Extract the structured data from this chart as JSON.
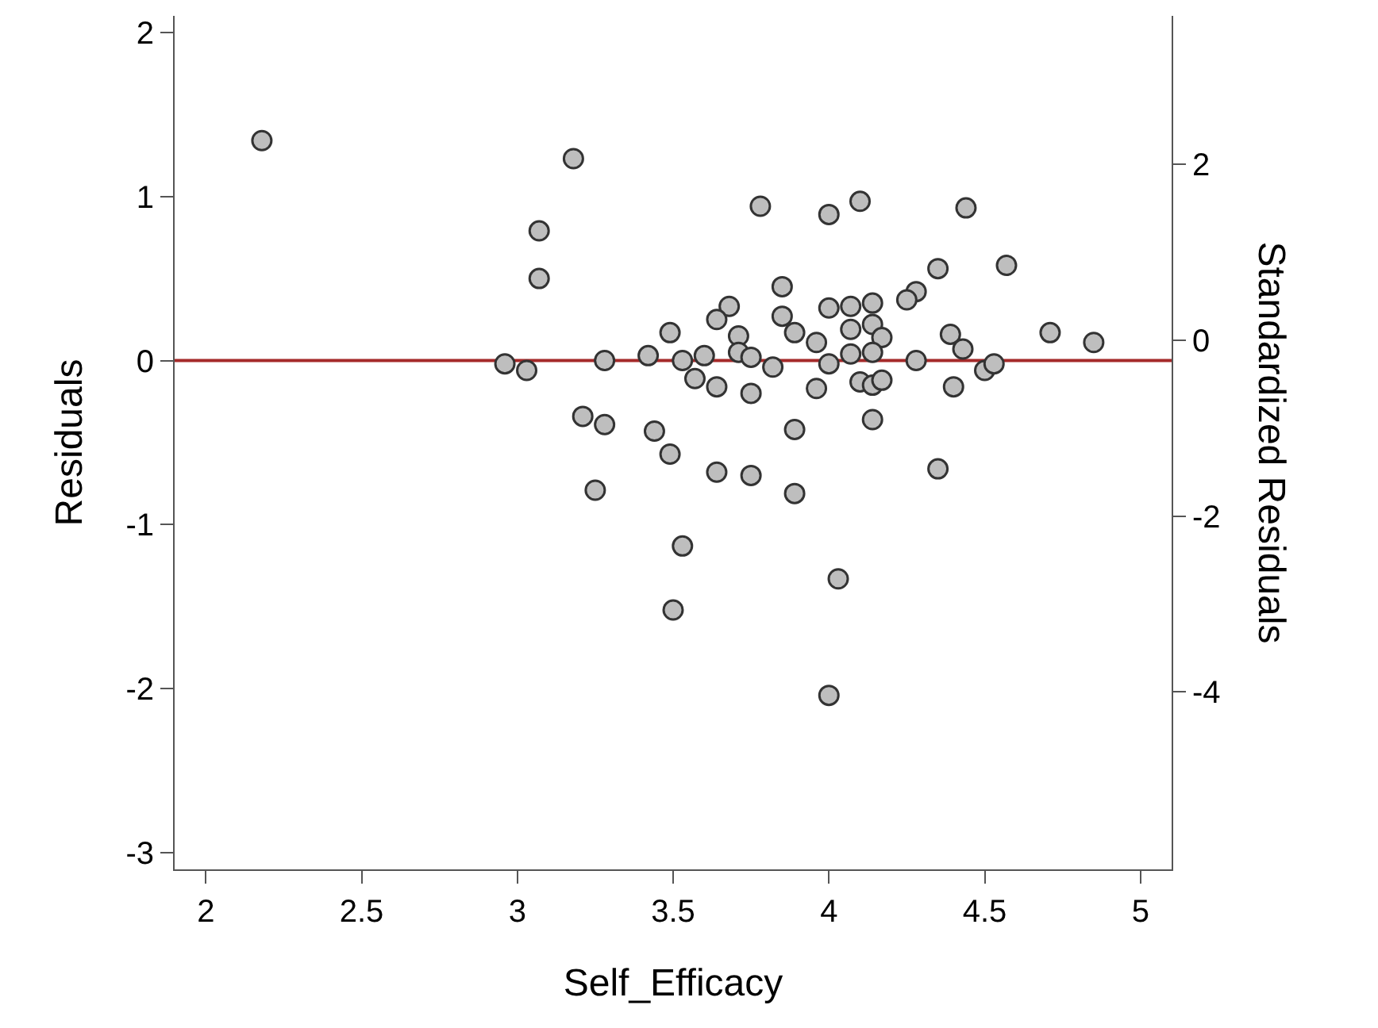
{
  "chart_data": {
    "type": "scatter",
    "xlabel": "Self_Efficacy",
    "ylabel": "Residuals",
    "y2label": "Standardized Residuals",
    "x": [
      2.18,
      3.18,
      3.07,
      3.07,
      2.96,
      3.03,
      3.28,
      3.42,
      3.21,
      3.28,
      3.44,
      3.25,
      3.49,
      3.49,
      3.78,
      4.0,
      4.1,
      4.44,
      4.35,
      4.57,
      3.85,
      3.68,
      3.64,
      4.0,
      4.07,
      4.14,
      4.28,
      4.25,
      3.85,
      3.89,
      4.07,
      4.14,
      4.17,
      3.96,
      3.71,
      4.39,
      4.43,
      4.71,
      4.85,
      3.53,
      3.6,
      3.71,
      3.75,
      3.82,
      4.0,
      4.07,
      4.14,
      4.28,
      4.5,
      4.53,
      3.57,
      3.64,
      3.75,
      3.96,
      4.1,
      4.14,
      4.17,
      4.4,
      4.14,
      3.89,
      4.35,
      3.64,
      3.75,
      3.89,
      3.53,
      4.03,
      3.5,
      4.0
    ],
    "series": [
      {
        "color": "#bebebe",
        "values": [
          1.34,
          1.23,
          0.79,
          0.5,
          -0.02,
          -0.06,
          0.0,
          0.03,
          -0.34,
          -0.39,
          -0.43,
          -0.79,
          0.17,
          -0.57,
          0.94,
          0.89,
          0.97,
          0.93,
          0.56,
          0.58,
          0.45,
          0.33,
          0.25,
          0.32,
          0.33,
          0.35,
          0.42,
          0.37,
          0.27,
          0.17,
          0.19,
          0.22,
          0.14,
          0.11,
          0.15,
          0.16,
          0.07,
          0.17,
          0.11,
          0.0,
          0.03,
          0.05,
          0.02,
          -0.04,
          -0.02,
          0.04,
          0.05,
          0.0,
          -0.06,
          -0.02,
          -0.11,
          -0.16,
          -0.2,
          -0.17,
          -0.13,
          -0.15,
          -0.12,
          -0.16,
          -0.36,
          -0.42,
          -0.66,
          -0.68,
          -0.7,
          -0.81,
          -1.13,
          -1.33,
          -1.52,
          -2.04
        ]
      }
    ],
    "marker": "circle",
    "xlim": [
      1.9,
      5.1
    ],
    "xticks": [
      2,
      2.5,
      3,
      3.5,
      4,
      4.5,
      5
    ],
    "ylim": [
      -3.1,
      2.1
    ],
    "yticks": [
      -3,
      -2,
      -1,
      0,
      1,
      2
    ],
    "y2lim": [
      -6.02,
      3.69
    ],
    "y2ticks": [
      -4,
      -2,
      0,
      2
    ],
    "ref_lines": [
      {
        "axis": "y",
        "value": 0,
        "color": "#a52a2a"
      }
    ]
  }
}
